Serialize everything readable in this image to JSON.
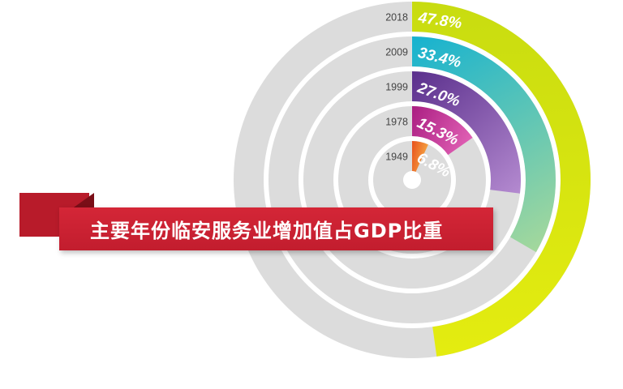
{
  "title": "主要年份临安服务业增加值占GDP比重",
  "chart_data": {
    "type": "radial-bar",
    "title": "主要年份临安服务业增加值占GDP比重",
    "unit": "%",
    "max": 100,
    "series": [
      {
        "year": "2018",
        "value": 47.8,
        "label": "47.8%",
        "colors": [
          "#c8dc10",
          "#e4ec10"
        ]
      },
      {
        "year": "2009",
        "value": 33.4,
        "label": "33.4%",
        "colors": [
          "#16b2d0",
          "#a4d89c"
        ]
      },
      {
        "year": "1999",
        "value": 27.0,
        "label": "27.0%",
        "colors": [
          "#5a2f8c",
          "#b48ad0"
        ]
      },
      {
        "year": "1978",
        "value": 15.3,
        "label": "15.3%",
        "colors": [
          "#aa1e82",
          "#e060b4"
        ]
      },
      {
        "year": "1949",
        "value": 6.8,
        "label": "6.8%",
        "colors": [
          "#e8501c",
          "#f4a040"
        ]
      }
    ]
  },
  "colors": {
    "track": "#dcdcdc",
    "banner": "#c8202f",
    "banner_dark": "#7a0e17"
  }
}
